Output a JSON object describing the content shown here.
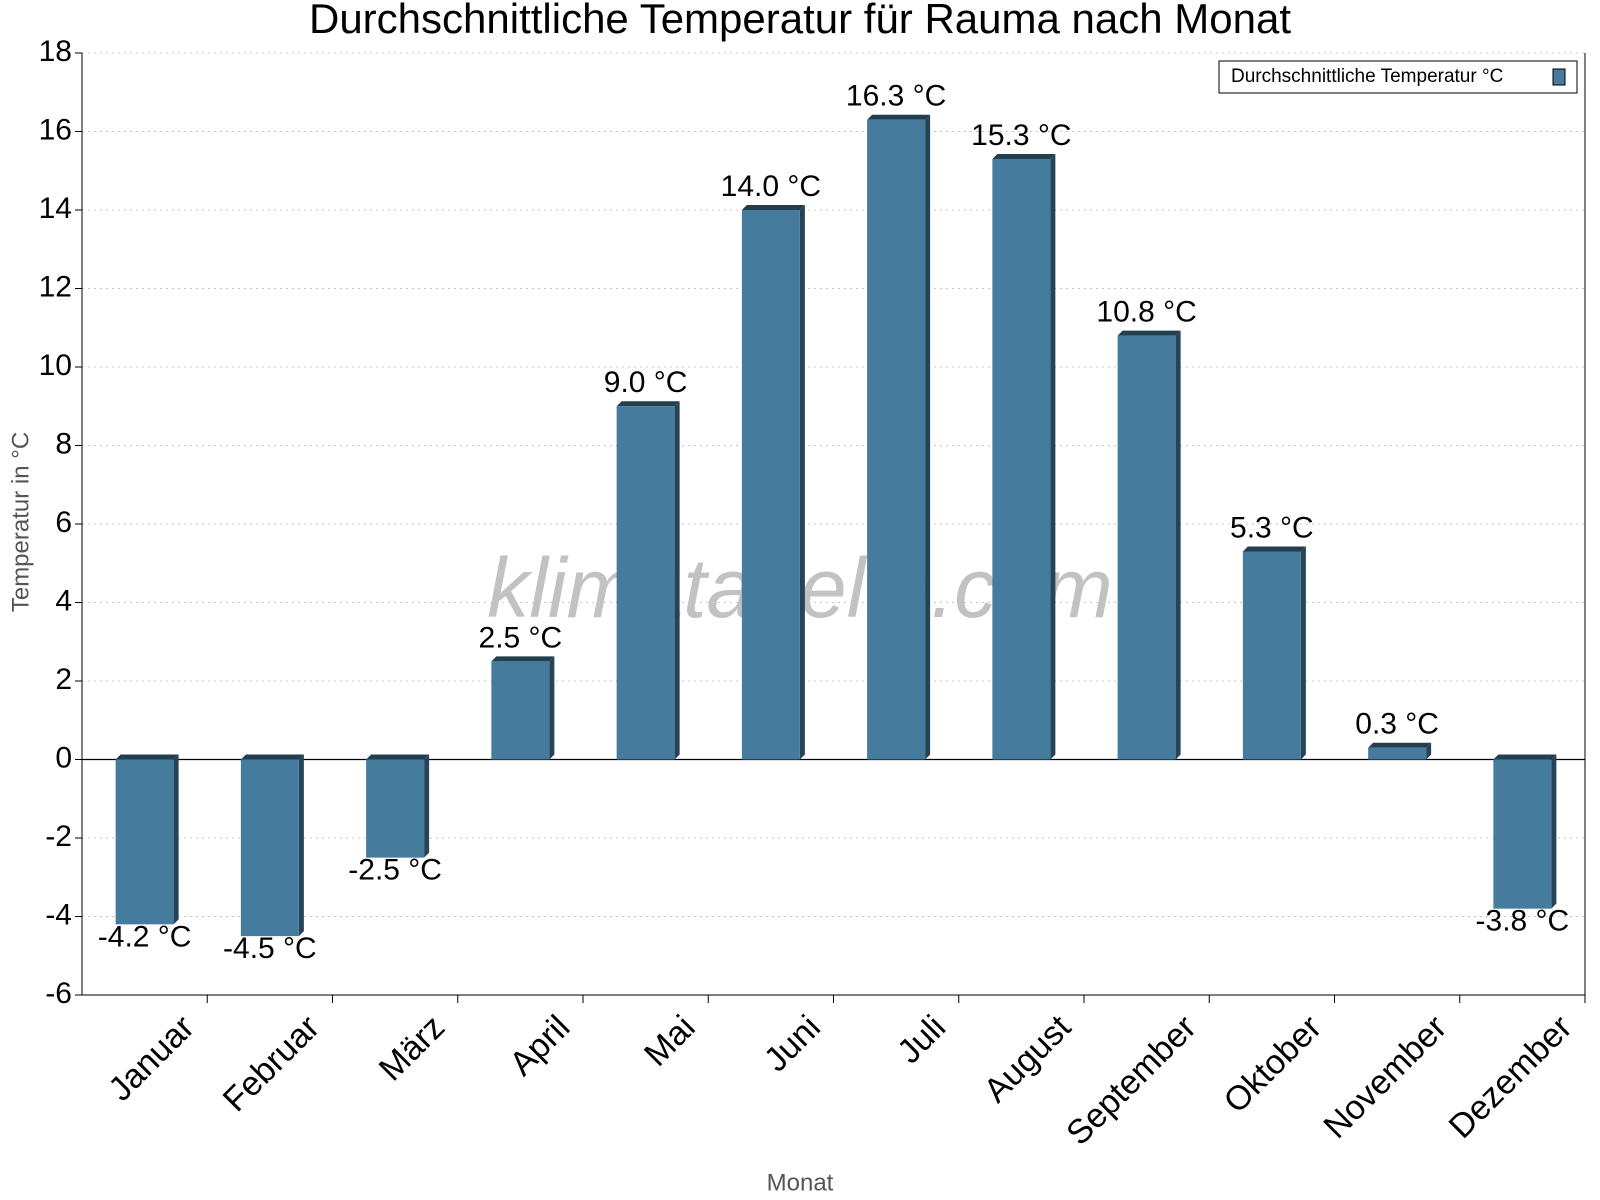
{
  "chart_data": {
    "type": "bar",
    "title": "Durchschnittliche Temperatur für Rauma nach Monat",
    "x_label": "Monat",
    "y_label": "Temperatur in °C",
    "watermark": "klimatabelle.com",
    "categories": [
      "Januar",
      "Februar",
      "März",
      "April",
      "Mai",
      "Juni",
      "Juli",
      "August",
      "September",
      "Oktober",
      "November",
      "Dezember"
    ],
    "series": [
      {
        "name": "Durchschnittliche Temperatur °C",
        "color": "#457b9d",
        "values": [
          -4.2,
          -4.5,
          -2.5,
          2.5,
          9.0,
          14.0,
          16.3,
          15.3,
          10.8,
          5.3,
          0.3,
          -3.8
        ],
        "value_labels": [
          "-4.2 °C",
          "-4.5 °C",
          "-2.5 °C",
          "2.5 °C",
          "9.0 °C",
          "14.0 °C",
          "16.3 °C",
          "15.3 °C",
          "10.8 °C",
          "5.3 °C",
          "0.3 °C",
          "-3.8 °C"
        ]
      }
    ],
    "ylim": [
      -6,
      18
    ],
    "yticks": [
      -6,
      -4,
      -2,
      0,
      2,
      4,
      6,
      8,
      10,
      12,
      14,
      16,
      18
    ],
    "grid": true,
    "legend": "top-right"
  }
}
